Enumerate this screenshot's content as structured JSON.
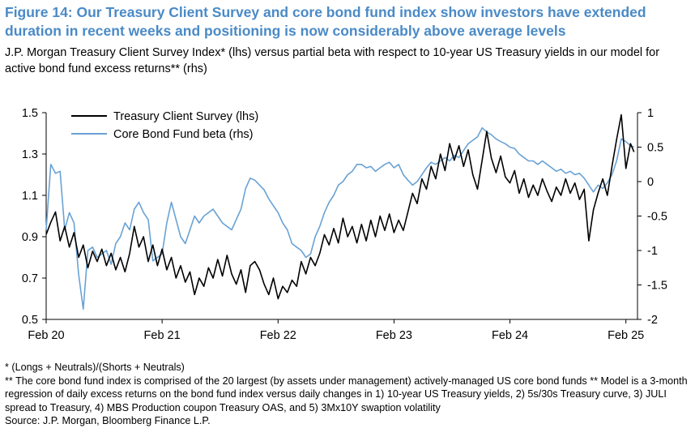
{
  "title": "Figure 14: Our Treasury Client Survey and core bond fund index show investors have extended duration in recent weeks and positioning is now considerably above average levels",
  "subtitle": "J.P. Morgan Treasury Client Survey Index* (lhs) versus partial beta with respect to 10-year US Treasury yields in our model for active bond fund excess returns** (rhs)",
  "footnotes": [
    "* (Longs + Neutrals)/(Shorts + Neutrals)",
    "** The core bond fund index is comprised of the 20 largest (by assets under management) actively-managed US core bond funds ** Model is a 3-month regression of daily excess returns on the bond fund index versus daily changes in 1) 10-year US Treasury yields, 2) 5s/30s Treasury curve, 3) JULI spread to Treasury, 4) MBS Production coupon Treasury OAS, and 5) 3Mx10Y swaption volatility",
    "Source: J.P. Morgan, Bloomberg Finance L.P."
  ],
  "colors": {
    "title": "#4a8ac6",
    "survey": "#000000",
    "beta": "#6aa2d4",
    "axis": "#000000"
  },
  "chart_data": {
    "type": "line",
    "xlim": [
      2020.0,
      2025.1
    ],
    "x_ticks": [
      {
        "label": "Feb 20",
        "x": 2020.0
      },
      {
        "label": "Feb 21",
        "x": 2021.0
      },
      {
        "label": "Feb 22",
        "x": 2022.0
      },
      {
        "label": "Feb 23",
        "x": 2023.0
      },
      {
        "label": "Feb 24",
        "x": 2024.0
      },
      {
        "label": "Feb 25",
        "x": 2025.0
      }
    ],
    "y_left": {
      "lim": [
        0.5,
        1.5
      ],
      "ticks": [
        "0.5",
        "0.7",
        "0.9",
        "1.1",
        "1.3",
        "1.5"
      ]
    },
    "y_right": {
      "lim": [
        -2,
        1
      ],
      "ticks": [
        "-2",
        "-1.5",
        "-1",
        "-0.5",
        "0",
        "0.5",
        "1"
      ]
    },
    "legend_position": "top-left",
    "series": [
      {
        "name": "Treasury Client Survey (lhs)",
        "axis": "left",
        "points": [
          [
            2020.0,
            0.91
          ],
          [
            2020.04,
            0.97
          ],
          [
            2020.08,
            1.02
          ],
          [
            2020.12,
            0.88
          ],
          [
            2020.16,
            0.95
          ],
          [
            2020.2,
            0.85
          ],
          [
            2020.24,
            0.92
          ],
          [
            2020.28,
            0.8
          ],
          [
            2020.32,
            0.86
          ],
          [
            2020.36,
            0.75
          ],
          [
            2020.4,
            0.83
          ],
          [
            2020.44,
            0.78
          ],
          [
            2020.48,
            0.84
          ],
          [
            2020.52,
            0.76
          ],
          [
            2020.56,
            0.82
          ],
          [
            2020.6,
            0.74
          ],
          [
            2020.64,
            0.8
          ],
          [
            2020.68,
            0.73
          ],
          [
            2020.72,
            0.82
          ],
          [
            2020.76,
            0.95
          ],
          [
            2020.8,
            0.85
          ],
          [
            2020.84,
            0.9
          ],
          [
            2020.88,
            0.78
          ],
          [
            2020.92,
            0.86
          ],
          [
            2020.96,
            0.76
          ],
          [
            2021.0,
            0.84
          ],
          [
            2021.04,
            0.74
          ],
          [
            2021.08,
            0.8
          ],
          [
            2021.12,
            0.7
          ],
          [
            2021.16,
            0.76
          ],
          [
            2021.2,
            0.68
          ],
          [
            2021.24,
            0.73
          ],
          [
            2021.28,
            0.62
          ],
          [
            2021.32,
            0.7
          ],
          [
            2021.36,
            0.66
          ],
          [
            2021.4,
            0.75
          ],
          [
            2021.44,
            0.7
          ],
          [
            2021.48,
            0.79
          ],
          [
            2021.52,
            0.71
          ],
          [
            2021.56,
            0.81
          ],
          [
            2021.6,
            0.72
          ],
          [
            2021.64,
            0.67
          ],
          [
            2021.68,
            0.74
          ],
          [
            2021.72,
            0.63
          ],
          [
            2021.76,
            0.76
          ],
          [
            2021.8,
            0.78
          ],
          [
            2021.84,
            0.74
          ],
          [
            2021.88,
            0.67
          ],
          [
            2021.92,
            0.62
          ],
          [
            2021.96,
            0.7
          ],
          [
            2022.0,
            0.6
          ],
          [
            2022.04,
            0.66
          ],
          [
            2022.08,
            0.63
          ],
          [
            2022.12,
            0.69
          ],
          [
            2022.16,
            0.66
          ],
          [
            2022.2,
            0.78
          ],
          [
            2022.24,
            0.72
          ],
          [
            2022.28,
            0.8
          ],
          [
            2022.32,
            0.76
          ],
          [
            2022.36,
            0.82
          ],
          [
            2022.4,
            0.91
          ],
          [
            2022.44,
            0.86
          ],
          [
            2022.48,
            0.94
          ],
          [
            2022.52,
            0.87
          ],
          [
            2022.56,
            0.99
          ],
          [
            2022.6,
            0.9
          ],
          [
            2022.64,
            0.95
          ],
          [
            2022.68,
            0.87
          ],
          [
            2022.72,
            0.96
          ],
          [
            2022.76,
            0.88
          ],
          [
            2022.8,
            0.98
          ],
          [
            2022.84,
            0.9
          ],
          [
            2022.88,
            1.0
          ],
          [
            2022.92,
            0.93
          ],
          [
            2022.96,
            1.01
          ],
          [
            2023.0,
            0.92
          ],
          [
            2023.04,
            0.98
          ],
          [
            2023.08,
            0.93
          ],
          [
            2023.12,
            1.02
          ],
          [
            2023.16,
            1.11
          ],
          [
            2023.2,
            1.06
          ],
          [
            2023.24,
            1.18
          ],
          [
            2023.28,
            1.13
          ],
          [
            2023.32,
            1.24
          ],
          [
            2023.36,
            1.18
          ],
          [
            2023.4,
            1.3
          ],
          [
            2023.44,
            1.22
          ],
          [
            2023.48,
            1.35
          ],
          [
            2023.52,
            1.27
          ],
          [
            2023.56,
            1.34
          ],
          [
            2023.6,
            1.24
          ],
          [
            2023.64,
            1.32
          ],
          [
            2023.68,
            1.2
          ],
          [
            2023.72,
            1.13
          ],
          [
            2023.76,
            1.27
          ],
          [
            2023.8,
            1.41
          ],
          [
            2023.84,
            1.28
          ],
          [
            2023.88,
            1.21
          ],
          [
            2023.92,
            1.29
          ],
          [
            2023.96,
            1.19
          ],
          [
            2024.0,
            1.16
          ],
          [
            2024.04,
            1.22
          ],
          [
            2024.08,
            1.11
          ],
          [
            2024.12,
            1.18
          ],
          [
            2024.16,
            1.09
          ],
          [
            2024.2,
            1.15
          ],
          [
            2024.24,
            1.1
          ],
          [
            2024.28,
            1.18
          ],
          [
            2024.32,
            1.12
          ],
          [
            2024.36,
            1.07
          ],
          [
            2024.4,
            1.14
          ],
          [
            2024.44,
            1.1
          ],
          [
            2024.48,
            1.18
          ],
          [
            2024.52,
            1.11
          ],
          [
            2024.56,
            1.16
          ],
          [
            2024.6,
            1.08
          ],
          [
            2024.64,
            1.13
          ],
          [
            2024.68,
            0.88
          ],
          [
            2024.72,
            1.03
          ],
          [
            2024.76,
            1.11
          ],
          [
            2024.8,
            1.18
          ],
          [
            2024.84,
            1.1
          ],
          [
            2024.88,
            1.24
          ],
          [
            2024.92,
            1.37
          ],
          [
            2024.96,
            1.49
          ],
          [
            2025.0,
            1.23
          ],
          [
            2025.04,
            1.35
          ],
          [
            2025.07,
            1.31
          ]
        ]
      },
      {
        "name": "Core Bond Fund beta (rhs)",
        "axis": "right",
        "points": [
          [
            2020.0,
            -0.7
          ],
          [
            2020.04,
            0.25
          ],
          [
            2020.08,
            0.12
          ],
          [
            2020.12,
            0.15
          ],
          [
            2020.16,
            -0.7
          ],
          [
            2020.2,
            -0.45
          ],
          [
            2020.24,
            -0.6
          ],
          [
            2020.28,
            -1.35
          ],
          [
            2020.32,
            -1.85
          ],
          [
            2020.36,
            -1.0
          ],
          [
            2020.4,
            -0.95
          ],
          [
            2020.44,
            -1.1
          ],
          [
            2020.48,
            -1.05
          ],
          [
            2020.52,
            -1.0
          ],
          [
            2020.56,
            -1.2
          ],
          [
            2020.6,
            -0.9
          ],
          [
            2020.64,
            -0.8
          ],
          [
            2020.68,
            -0.6
          ],
          [
            2020.72,
            -0.7
          ],
          [
            2020.76,
            -0.4
          ],
          [
            2020.8,
            -0.3
          ],
          [
            2020.84,
            -0.45
          ],
          [
            2020.88,
            -0.55
          ],
          [
            2020.92,
            -1.15
          ],
          [
            2020.96,
            -1.1
          ],
          [
            2021.0,
            -1.05
          ],
          [
            2021.04,
            -0.6
          ],
          [
            2021.08,
            -0.3
          ],
          [
            2021.12,
            -0.55
          ],
          [
            2021.16,
            -0.8
          ],
          [
            2021.2,
            -0.9
          ],
          [
            2021.24,
            -0.7
          ],
          [
            2021.28,
            -0.5
          ],
          [
            2021.32,
            -0.6
          ],
          [
            2021.36,
            -0.5
          ],
          [
            2021.4,
            -0.45
          ],
          [
            2021.44,
            -0.4
          ],
          [
            2021.48,
            -0.5
          ],
          [
            2021.52,
            -0.6
          ],
          [
            2021.56,
            -0.65
          ],
          [
            2021.6,
            -0.7
          ],
          [
            2021.64,
            -0.55
          ],
          [
            2021.68,
            -0.4
          ],
          [
            2021.72,
            -0.1
          ],
          [
            2021.76,
            0.05
          ],
          [
            2021.8,
            0.02
          ],
          [
            2021.84,
            -0.05
          ],
          [
            2021.88,
            -0.12
          ],
          [
            2021.92,
            -0.25
          ],
          [
            2021.96,
            -0.35
          ],
          [
            2022.0,
            -0.45
          ],
          [
            2022.04,
            -0.6
          ],
          [
            2022.08,
            -0.7
          ],
          [
            2022.12,
            -0.9
          ],
          [
            2022.16,
            -0.95
          ],
          [
            2022.2,
            -1.0
          ],
          [
            2022.24,
            -1.1
          ],
          [
            2022.28,
            -1.05
          ],
          [
            2022.32,
            -0.8
          ],
          [
            2022.36,
            -0.65
          ],
          [
            2022.4,
            -0.45
          ],
          [
            2022.44,
            -0.3
          ],
          [
            2022.48,
            -0.2
          ],
          [
            2022.52,
            -0.05
          ],
          [
            2022.56,
            0.0
          ],
          [
            2022.6,
            0.1
          ],
          [
            2022.64,
            0.15
          ],
          [
            2022.68,
            0.25
          ],
          [
            2022.72,
            0.25
          ],
          [
            2022.76,
            0.2
          ],
          [
            2022.8,
            0.22
          ],
          [
            2022.84,
            0.15
          ],
          [
            2022.88,
            0.2
          ],
          [
            2022.92,
            0.25
          ],
          [
            2022.96,
            0.28
          ],
          [
            2023.0,
            0.2
          ],
          [
            2023.04,
            0.25
          ],
          [
            2023.08,
            0.1
          ],
          [
            2023.12,
            0.02
          ],
          [
            2023.16,
            -0.05
          ],
          [
            2023.2,
            0.0
          ],
          [
            2023.24,
            0.1
          ],
          [
            2023.28,
            0.2
          ],
          [
            2023.32,
            0.28
          ],
          [
            2023.36,
            0.25
          ],
          [
            2023.4,
            0.3
          ],
          [
            2023.44,
            0.35
          ],
          [
            2023.48,
            0.3
          ],
          [
            2023.52,
            0.38
          ],
          [
            2023.56,
            0.35
          ],
          [
            2023.6,
            0.45
          ],
          [
            2023.64,
            0.55
          ],
          [
            2023.68,
            0.6
          ],
          [
            2023.72,
            0.65
          ],
          [
            2023.76,
            0.78
          ],
          [
            2023.8,
            0.72
          ],
          [
            2023.84,
            0.68
          ],
          [
            2023.88,
            0.62
          ],
          [
            2023.92,
            0.58
          ],
          [
            2023.96,
            0.55
          ],
          [
            2024.0,
            0.5
          ],
          [
            2024.04,
            0.48
          ],
          [
            2024.08,
            0.4
          ],
          [
            2024.12,
            0.35
          ],
          [
            2024.16,
            0.3
          ],
          [
            2024.2,
            0.3
          ],
          [
            2024.24,
            0.25
          ],
          [
            2024.28,
            0.3
          ],
          [
            2024.32,
            0.25
          ],
          [
            2024.36,
            0.2
          ],
          [
            2024.4,
            0.15
          ],
          [
            2024.44,
            0.18
          ],
          [
            2024.48,
            0.12
          ],
          [
            2024.52,
            0.15
          ],
          [
            2024.56,
            0.1
          ],
          [
            2024.6,
            0.12
          ],
          [
            2024.64,
            0.05
          ],
          [
            2024.68,
            -0.05
          ],
          [
            2024.72,
            -0.15
          ],
          [
            2024.76,
            -0.05
          ],
          [
            2024.8,
            -0.1
          ],
          [
            2024.84,
            -0.02
          ],
          [
            2024.88,
            0.1
          ],
          [
            2024.92,
            0.3
          ],
          [
            2024.96,
            0.62
          ],
          [
            2025.0,
            0.58
          ],
          [
            2025.04,
            0.52
          ],
          [
            2025.07,
            0.5
          ]
        ]
      }
    ]
  }
}
